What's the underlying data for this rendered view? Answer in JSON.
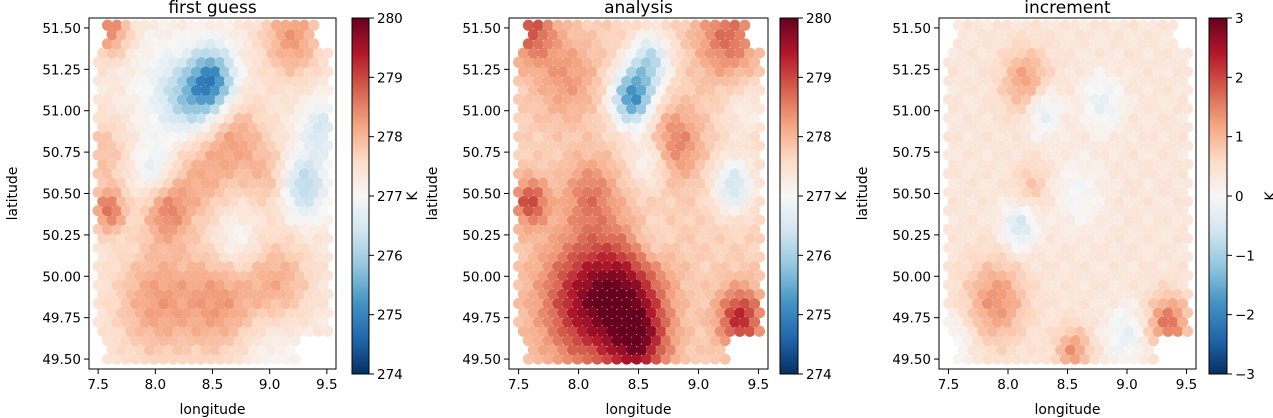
{
  "chart_data": [
    {
      "type": "scatter",
      "title": "first guess",
      "xlabel": "longitude",
      "ylabel": "latitude",
      "xlim": [
        7.42,
        9.58
      ],
      "ylim": [
        49.44,
        51.56
      ],
      "xticks": [
        "7.5",
        "8.0",
        "8.5",
        "9.0",
        "9.5"
      ],
      "yticks": [
        "49.50",
        "49.75",
        "50.00",
        "50.25",
        "50.50",
        "50.75",
        "51.00",
        "51.25",
        "51.50"
      ],
      "colormap": "RdBu_r",
      "colorbar": {
        "label": "K",
        "range": [
          274,
          280
        ],
        "ticks": [
          "274",
          "275",
          "276",
          "277",
          "278",
          "279",
          "280"
        ]
      },
      "field": {
        "base": 277.3,
        "blobs": [
          {
            "lon": 8.5,
            "lat": 51.18,
            "amp": -2.2,
            "rad": 0.14
          },
          {
            "lon": 8.3,
            "lat": 51.05,
            "amp": -1.0,
            "rad": 0.15
          },
          {
            "lon": 8.1,
            "lat": 51.15,
            "amp": -0.5,
            "rad": 0.2
          },
          {
            "lon": 8.0,
            "lat": 50.65,
            "amp": -0.7,
            "rad": 0.12
          },
          {
            "lon": 9.3,
            "lat": 50.55,
            "amp": -1.2,
            "rad": 0.14
          },
          {
            "lon": 9.45,
            "lat": 50.9,
            "amp": -0.8,
            "rad": 0.12
          },
          {
            "lon": 8.7,
            "lat": 50.2,
            "amp": -0.6,
            "rad": 0.15
          },
          {
            "lon": 9.0,
            "lat": 49.6,
            "amp": -0.4,
            "rad": 0.25
          },
          {
            "lon": 8.1,
            "lat": 50.4,
            "amp": 1.0,
            "rad": 0.14
          },
          {
            "lon": 7.6,
            "lat": 50.4,
            "amp": 1.3,
            "rad": 0.1
          },
          {
            "lon": 7.6,
            "lat": 51.5,
            "amp": 1.2,
            "rad": 0.12
          },
          {
            "lon": 9.2,
            "lat": 51.45,
            "amp": 1.0,
            "rad": 0.18
          },
          {
            "lon": 8.0,
            "lat": 49.85,
            "amp": 0.9,
            "rad": 0.25
          },
          {
            "lon": 8.6,
            "lat": 49.85,
            "amp": 1.0,
            "rad": 0.25
          },
          {
            "lon": 9.1,
            "lat": 49.95,
            "amp": 0.8,
            "rad": 0.2
          },
          {
            "lon": 8.7,
            "lat": 50.85,
            "amp": 0.8,
            "rad": 0.18
          },
          {
            "lon": 8.4,
            "lat": 50.6,
            "amp": 0.7,
            "rad": 0.2
          },
          {
            "lon": 7.55,
            "lat": 50.75,
            "amp": 0.6,
            "rad": 0.15
          },
          {
            "lon": 9.0,
            "lat": 50.6,
            "amp": 0.6,
            "rad": 0.15
          }
        ]
      }
    },
    {
      "type": "scatter",
      "title": "analysis",
      "xlabel": "longitude",
      "ylabel": "latitude",
      "xlim": [
        7.42,
        9.58
      ],
      "ylim": [
        49.44,
        51.56
      ],
      "xticks": [
        "7.5",
        "8.0",
        "8.5",
        "9.0",
        "9.5"
      ],
      "yticks": [
        "49.50",
        "49.75",
        "50.00",
        "50.25",
        "50.50",
        "50.75",
        "51.00",
        "51.25",
        "51.50"
      ],
      "colormap": "RdBu_r",
      "colorbar": {
        "label": "K",
        "range": [
          274,
          280
        ],
        "ticks": [
          "274",
          "275",
          "276",
          "277",
          "278",
          "279",
          "280"
        ]
      },
      "field": {
        "base": 277.7,
        "blobs": [
          {
            "lon": 8.45,
            "lat": 51.08,
            "amp": -2.5,
            "rad": 0.12
          },
          {
            "lon": 8.6,
            "lat": 51.3,
            "amp": -1.5,
            "rad": 0.12
          },
          {
            "lon": 8.6,
            "lat": 50.7,
            "amp": -0.8,
            "rad": 0.12
          },
          {
            "lon": 9.3,
            "lat": 50.55,
            "amp": -1.3,
            "rad": 0.12
          },
          {
            "lon": 9.4,
            "lat": 51.0,
            "amp": -0.5,
            "rad": 0.14
          },
          {
            "lon": 8.6,
            "lat": 50.2,
            "amp": -0.5,
            "rad": 0.12
          },
          {
            "lon": 8.1,
            "lat": 49.85,
            "amp": 1.9,
            "rad": 0.28
          },
          {
            "lon": 8.5,
            "lat": 49.6,
            "amp": 1.6,
            "rad": 0.18
          },
          {
            "lon": 8.45,
            "lat": 49.95,
            "amp": 1.0,
            "rad": 0.22
          },
          {
            "lon": 9.35,
            "lat": 49.75,
            "amp": 1.6,
            "rad": 0.13
          },
          {
            "lon": 7.6,
            "lat": 50.45,
            "amp": 1.3,
            "rad": 0.1
          },
          {
            "lon": 7.6,
            "lat": 51.5,
            "amp": 1.2,
            "rad": 0.14
          },
          {
            "lon": 9.25,
            "lat": 51.45,
            "amp": 1.0,
            "rad": 0.18
          },
          {
            "lon": 8.8,
            "lat": 50.8,
            "amp": 0.9,
            "rad": 0.15
          },
          {
            "lon": 8.1,
            "lat": 50.5,
            "amp": 0.8,
            "rad": 0.15
          },
          {
            "lon": 7.9,
            "lat": 51.2,
            "amp": 0.6,
            "rad": 0.18
          }
        ]
      }
    },
    {
      "type": "scatter",
      "title": "increment",
      "xlabel": "longitude",
      "ylabel": "latitude",
      "xlim": [
        7.42,
        9.58
      ],
      "ylim": [
        49.44,
        51.56
      ],
      "xticks": [
        "7.5",
        "8.0",
        "8.5",
        "9.0",
        "9.5"
      ],
      "yticks": [
        "49.50",
        "49.75",
        "50.00",
        "50.25",
        "50.50",
        "50.75",
        "51.00",
        "51.25",
        "51.50"
      ],
      "colormap": "RdBu_r",
      "colorbar": {
        "label": "K",
        "range": [
          -3,
          3
        ],
        "ticks": [
          "−3",
          "−2",
          "−1",
          "0",
          "1",
          "2",
          "3"
        ]
      },
      "field": {
        "base": 0.35,
        "blobs": [
          {
            "lon": 8.15,
            "lat": 51.18,
            "amp": 0.9,
            "rad": 0.14
          },
          {
            "lon": 8.3,
            "lat": 51.0,
            "amp": -0.8,
            "rad": 0.1
          },
          {
            "lon": 8.8,
            "lat": 51.05,
            "amp": -0.6,
            "rad": 0.12
          },
          {
            "lon": 8.1,
            "lat": 50.3,
            "amp": -0.9,
            "rad": 0.1
          },
          {
            "lon": 8.6,
            "lat": 50.5,
            "amp": -0.4,
            "rad": 0.15
          },
          {
            "lon": 7.9,
            "lat": 49.85,
            "amp": 1.0,
            "rad": 0.18
          },
          {
            "lon": 8.55,
            "lat": 49.55,
            "amp": 1.0,
            "rad": 0.1
          },
          {
            "lon": 9.35,
            "lat": 49.72,
            "amp": 1.3,
            "rad": 0.12
          },
          {
            "lon": 8.2,
            "lat": 50.55,
            "amp": 0.5,
            "rad": 0.1
          },
          {
            "lon": 9.0,
            "lat": 49.65,
            "amp": -0.6,
            "rad": 0.12
          },
          {
            "lon": 7.55,
            "lat": 49.6,
            "amp": -0.5,
            "rad": 0.12
          }
        ]
      }
    }
  ]
}
